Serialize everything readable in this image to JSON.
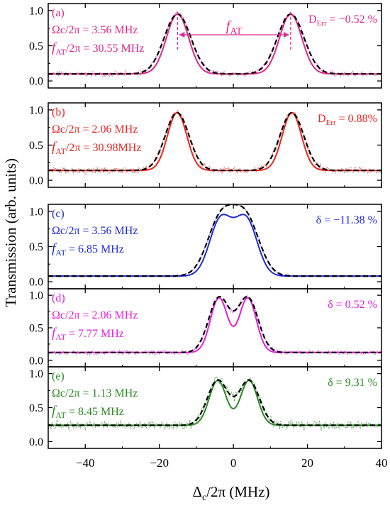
{
  "figure": {
    "ylabel": "Transmission (arb. units)",
    "xlabel_main": "Δ",
    "xlabel_sub": "c",
    "xlabel_rest": "/2π (MHz)",
    "colors": {
      "frame": "#000000",
      "dash": "#000000"
    }
  },
  "chart_data": [
    {
      "type": "line",
      "panel": "(a)",
      "color": "#e0288c",
      "xlim": [
        -50,
        40
      ],
      "ylim": [
        -0.1,
        1.1
      ],
      "x_ticks": [
        -40,
        -20,
        0,
        20,
        40
      ],
      "y_ticks": [
        "0.0",
        "0.5",
        "1.0"
      ],
      "annotation_lines": [
        {
          "pre": "Ωc/2π = 3.56 MHz",
          "italic": "",
          "sub": "",
          "post": ""
        },
        {
          "pre": "",
          "italic": "f",
          "sub": "AT",
          "post": "/2π = 30.55 MHz"
        }
      ],
      "right_label": {
        "pre": "D",
        "sub": "Err",
        "post": " = −0.52 %"
      },
      "arrow_label": {
        "italic": "f",
        "sub": "AT"
      },
      "model": {
        "type": "two-peak",
        "center": 0.2,
        "spacing": 30.55,
        "baseline": 0.1,
        "amplitude": 0.85,
        "solid_width": 3.0,
        "dashed_width": 3.6
      },
      "noise_level": 0.025
    },
    {
      "type": "line",
      "panel": "(b)",
      "color": "#e8261f",
      "xlim": [
        -50,
        40
      ],
      "ylim": [
        -0.1,
        1.1
      ],
      "x_ticks": [
        -40,
        -20,
        0,
        20,
        40
      ],
      "y_ticks": [
        "0.0",
        "0.5",
        "1.0"
      ],
      "annotation_lines": [
        {
          "pre": "Ωc/2π = 2.06 MHz",
          "italic": "",
          "sub": "",
          "post": ""
        },
        {
          "pre": "",
          "italic": "f",
          "sub": "AT",
          "post": "/2π = 30.98MHz"
        }
      ],
      "right_label": {
        "pre": "D",
        "sub": "Err",
        "post": " = 0.88%"
      },
      "model": {
        "type": "two-peak",
        "center": 0.3,
        "spacing": 30.98,
        "baseline": 0.14,
        "amplitude": 0.82,
        "solid_width": 2.6,
        "dashed_width": 3.2
      },
      "noise_level": 0.03
    },
    {
      "type": "line",
      "panel": "(c)",
      "color": "#1f2bd9",
      "xlim": [
        -50,
        40
      ],
      "ylim": [
        -0.1,
        1.1
      ],
      "x_ticks": [
        -40,
        -20,
        0,
        20,
        40
      ],
      "y_ticks": [
        "0.0",
        "0.5",
        "1.0"
      ],
      "annotation_lines": [
        {
          "pre": "Ωc/2π = 3.56 MHz",
          "italic": "",
          "sub": "",
          "post": ""
        },
        {
          "pre": "",
          "italic": "f",
          "sub": "AT",
          "post": " = 6.85 MHz"
        }
      ],
      "right_label": {
        "pre": "δ = −11.38 %",
        "sub": "",
        "post": ""
      },
      "model": {
        "type": "two-peak",
        "center": 0.0,
        "spacing": 6.85,
        "baseline": 0.08,
        "amplitude": 0.8,
        "solid_width": 3.0,
        "dashed_width": 3.6
      },
      "noise_level": 0.01
    },
    {
      "type": "line",
      "panel": "(d)",
      "color": "#e41fd8",
      "xlim": [
        -50,
        40
      ],
      "ylim": [
        -0.1,
        1.1
      ],
      "x_ticks": [
        -40,
        -20,
        0,
        20,
        40
      ],
      "y_ticks": [
        "0.0",
        "0.5",
        "1.0"
      ],
      "annotation_lines": [
        {
          "pre": "Ωc/2π = 2.06 MHz",
          "italic": "",
          "sub": "",
          "post": ""
        },
        {
          "pre": "",
          "italic": "f",
          "sub": "AT",
          "post": " = 7.77 MHz"
        }
      ],
      "right_label": {
        "pre": "δ = 0.52 %",
        "sub": "",
        "post": ""
      },
      "model": {
        "type": "two-peak",
        "center": 0.0,
        "spacing": 7.77,
        "baseline": 0.12,
        "amplitude": 0.84,
        "solid_width": 2.3,
        "dashed_width": 2.8
      },
      "noise_level": 0.025
    },
    {
      "type": "line",
      "panel": "(e)",
      "color": "#2a8a22",
      "xlim": [
        -50,
        40
      ],
      "ylim": [
        -0.1,
        1.1
      ],
      "x_ticks": [
        -40,
        -20,
        0,
        20,
        40
      ],
      "y_ticks": [
        "0.0",
        "0.5",
        "1.0"
      ],
      "x_tick_labels": [
        "−40",
        "−20",
        "0",
        "20",
        "40"
      ],
      "annotation_lines": [
        {
          "pre": "Ωc/2π = 1.13 MHz",
          "italic": "",
          "sub": "",
          "post": ""
        },
        {
          "pre": "",
          "italic": "f",
          "sub": "AT",
          "post": " = 8.45 MHz"
        }
      ],
      "right_label": {
        "pre": "δ = 9.31 %",
        "sub": "",
        "post": ""
      },
      "model": {
        "type": "two-peak",
        "center": 0.0,
        "spacing": 8.45,
        "baseline": 0.24,
        "amplitude": 0.66,
        "solid_width": 2.3,
        "dashed_width": 2.8
      },
      "noise_level": 0.045
    }
  ]
}
